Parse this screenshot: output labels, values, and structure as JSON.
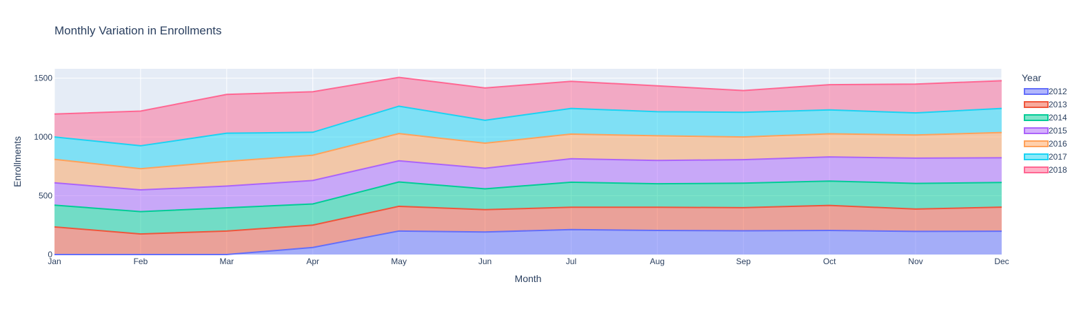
{
  "chart_data": {
    "type": "area",
    "stacked": true,
    "title": "Monthly Variation in Enrollments",
    "xlabel": "Month",
    "ylabel": "Enrollments",
    "ylim": [
      0,
      1580
    ],
    "yticks": [
      0,
      500,
      1000,
      1500
    ],
    "grid": true,
    "legend": {
      "title": "Year",
      "position": "right"
    },
    "categories": [
      "Jan",
      "Feb",
      "Mar",
      "Apr",
      "May",
      "Jun",
      "Jul",
      "Aug",
      "Sep",
      "Oct",
      "Nov",
      "Dec"
    ],
    "series": [
      {
        "name": "2012",
        "color": "#636efa",
        "values": [
          0,
          0,
          0,
          60,
          200,
          192,
          212,
          205,
          202,
          205,
          197,
          198
        ]
      },
      {
        "name": "2013",
        "color": "#ef553b",
        "values": [
          235,
          175,
          200,
          190,
          210,
          190,
          190,
          197,
          197,
          213,
          190,
          205
        ]
      },
      {
        "name": "2014",
        "color": "#00cc96",
        "values": [
          185,
          190,
          197,
          180,
          207,
          177,
          213,
          200,
          208,
          207,
          218,
          210
        ]
      },
      {
        "name": "2015",
        "color": "#ab63fa",
        "values": [
          190,
          185,
          185,
          200,
          180,
          175,
          200,
          198,
          200,
          205,
          215,
          210
        ]
      },
      {
        "name": "2016",
        "color": "#ffa15a",
        "values": [
          200,
          180,
          210,
          215,
          232,
          213,
          210,
          210,
          193,
          197,
          197,
          215
        ]
      },
      {
        "name": "2017",
        "color": "#19d3f3",
        "values": [
          190,
          195,
          240,
          195,
          233,
          195,
          218,
          205,
          210,
          203,
          188,
          205
        ]
      },
      {
        "name": "2018",
        "color": "#ff6692",
        "values": [
          195,
          295,
          330,
          345,
          245,
          275,
          230,
          220,
          185,
          215,
          245,
          235
        ]
      }
    ]
  }
}
